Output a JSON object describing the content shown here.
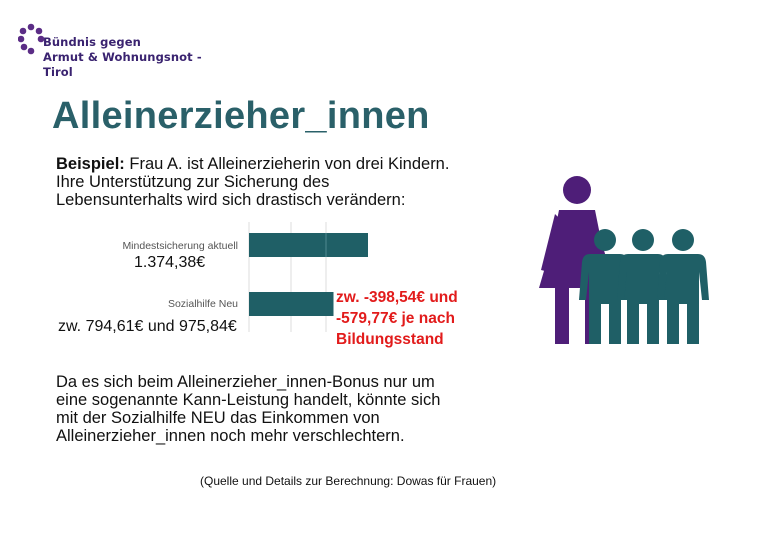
{
  "logo": {
    "line1": "Bündnis gegen",
    "line2": "Armut & Wohnungsnot - Tirol"
  },
  "title": "Alleinerzieher_innen",
  "intro": {
    "bold": "Beispiel:",
    "line1": " Frau A. ist Alleinerzieherin von drei Kindern.",
    "line2": "Ihre Unterstützung zur Sicherung des",
    "line3": "Lebensunterhalts wird sich drastisch verändern:"
  },
  "chart_data": {
    "type": "bar",
    "orientation": "horizontal",
    "categories": [
      "Mindestsicherung aktuell",
      "Sozialhilfe Neu"
    ],
    "values": [
      1374.38,
      975.84
    ],
    "value_labels": [
      "1.374,38€",
      "zw. 794,61€ und 975,84€"
    ],
    "annotation": [
      "zw. -398,54€ und",
      "-579,77€ je nach",
      "Bildungsstand"
    ],
    "grid": true,
    "bar_color": "#1f5f66"
  },
  "body2": [
    "Da es sich beim Alleinerzieher_innen-Bonus nur um",
    "eine sogenannte Kann-Leistung handelt, könnte sich",
    "mit der Sozialhilfe NEU das Einkommen von",
    "Alleinerzieher_innen noch mehr verschlechtern."
  ],
  "source": "(Quelle und Details zur Berechnung: Dowas für Frauen)",
  "colors": {
    "title": "#2a6069",
    "bar": "#1f5f66",
    "highlight": "#e21b1b",
    "mother": "#4e1e78",
    "children": "#1f5f66",
    "logo_dots": "#5b2d86"
  }
}
